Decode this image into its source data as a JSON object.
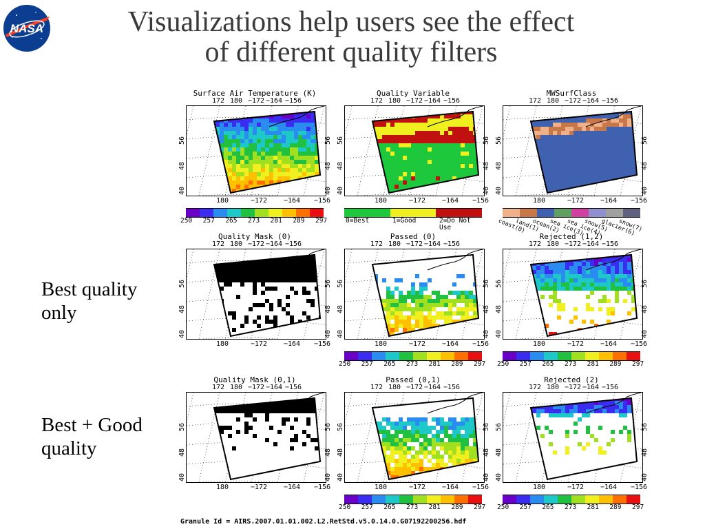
{
  "slide": {
    "title_line1": "Visualizations help users see the effect",
    "title_line2": "of different quality filters",
    "side_label_1_line1": "Best quality",
    "side_label_1_line2": "only",
    "side_label_2_line1": "Best + Good",
    "side_label_2_line2": "quality",
    "granule": "Granule Id = AIRS.2007.01.01.002.L2.RetStd.v5.0.14.0.G07192200256.hdf",
    "logo_text": "NASA"
  },
  "map_ticks": {
    "top": [
      "172",
      "180",
      "−172",
      "−164",
      "−156"
    ],
    "bottom": [
      "180",
      "−172",
      "−164",
      "−156"
    ],
    "lat": [
      "56",
      "48",
      "40"
    ]
  },
  "panels": [
    {
      "title": "Surface Air Temperature (K)",
      "style": "temp",
      "colorbar": "temp"
    },
    {
      "title": "Quality Variable",
      "style": "quality",
      "colorbar": "quality"
    },
    {
      "title": "MWSurfClass",
      "style": "class",
      "colorbar": "class"
    },
    {
      "title": "Quality Mask (0)",
      "style": "mask0",
      "colorbar": "none"
    },
    {
      "title": "Passed (0)",
      "style": "passed0",
      "colorbar": "temp"
    },
    {
      "title": "Rejected (1,2)",
      "style": "rejected12",
      "colorbar": "temp"
    },
    {
      "title": "Quality Mask (0,1)",
      "style": "mask01",
      "colorbar": "none"
    },
    {
      "title": "Passed (0,1)",
      "style": "passed01",
      "colorbar": "temp"
    },
    {
      "title": "Rejected (2)",
      "style": "rejected2",
      "colorbar": "temp"
    }
  ],
  "colorbars": {
    "temp": {
      "labels": [
        "250",
        "257",
        "265",
        "273",
        "281",
        "289",
        "297"
      ],
      "colors": [
        "#6a00c8",
        "#3a2cf0",
        "#2a8cf0",
        "#1ec8c8",
        "#20c040",
        "#a0e020",
        "#f0f020",
        "#ffc000",
        "#ff7000",
        "#e81010"
      ]
    },
    "quality": {
      "labels": [
        "0=Best",
        "1=Good",
        "2=Do Not Use"
      ],
      "colors": [
        "#1ec83c",
        "#f0f020",
        "#c01010"
      ]
    },
    "class": {
      "labels": [
        "coast(0)",
        "land(1)",
        "ocean(2)",
        "sea ice(3)",
        "sea ice(4)",
        "snow(5)",
        "glacier(6)",
        "snow(7)"
      ],
      "colors": [
        "#f0b088",
        "#c87848",
        "#4060b0",
        "#60a060",
        "#d040a0",
        "#9090d0",
        "#a0a0a0",
        "#606080"
      ]
    }
  },
  "colors": {
    "title_text": "#3a3a3a",
    "nasa_blue": "#0b3d91",
    "nasa_red": "#fc3d21"
  }
}
